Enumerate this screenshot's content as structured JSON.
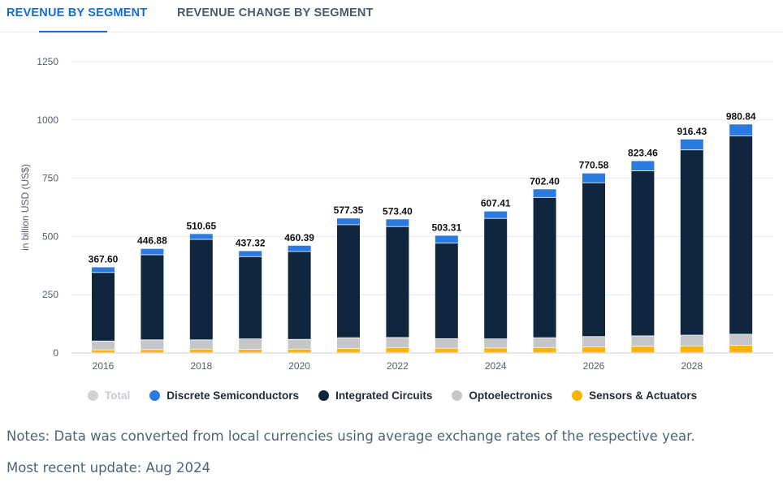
{
  "tabs": [
    {
      "label": "REVENUE BY SEGMENT",
      "active": true
    },
    {
      "label": "REVENUE CHANGE BY SEGMENT",
      "active": false
    }
  ],
  "colors": {
    "accent": "#0f6fd1",
    "discrete": "#2b7ae0",
    "integrated": "#10263f",
    "opto": "#c4c6c9",
    "sensors": "#fcb400",
    "total_muted": "#d0d3d6"
  },
  "legend": [
    {
      "label": "Total",
      "color": "#d0d3d6",
      "muted": true
    },
    {
      "label": "Discrete Semiconductors",
      "color": "#2b7ae0",
      "muted": false
    },
    {
      "label": "Integrated Circuits",
      "color": "#10263f",
      "muted": false
    },
    {
      "label": "Optoelectronics",
      "color": "#c4c6c9",
      "muted": false
    },
    {
      "label": "Sensors & Actuators",
      "color": "#fcb400",
      "muted": false
    }
  ],
  "notes": "Notes: Data was converted from local currencies using average exchange rates of the respective year.",
  "update": "Most recent update: Aug 2024",
  "chart_data": {
    "type": "bar",
    "stacked": true,
    "ylabel": "in billion USD (US$)",
    "ylim": [
      0,
      1250
    ],
    "yticks": [
      0,
      250,
      500,
      750,
      1000,
      1250
    ],
    "grid": true,
    "legend_position": "bottom",
    "categories": [
      "2016",
      "2017",
      "2018",
      "2019",
      "2020",
      "2021",
      "2022",
      "2023",
      "2024",
      "2025",
      "2026",
      "2027",
      "2028",
      "2029"
    ],
    "x_tick_labels": [
      "2016",
      "",
      "2018",
      "",
      "2020",
      "",
      "2022",
      "",
      "2024",
      "",
      "2026",
      "",
      "2028",
      ""
    ],
    "totals": [
      "367.60",
      "446.88",
      "510.65",
      "437.32",
      "460.39",
      "577.35",
      "573.40",
      "503.31",
      "607.41",
      "702.40",
      "770.58",
      "823.46",
      "916.43",
      "980.84"
    ],
    "series": [
      {
        "name": "Sensors & Actuators",
        "color": "#fcb400",
        "values": [
          12,
          13,
          15,
          14,
          15,
          18,
          22,
          19,
          20,
          22,
          25,
          27,
          29,
          32
        ]
      },
      {
        "name": "Optoelectronics",
        "color": "#c4c6c9",
        "values": [
          38,
          42,
          40,
          45,
          42,
          46,
          43,
          41,
          39,
          42,
          44,
          45,
          46,
          47
        ]
      },
      {
        "name": "Integrated Circuits",
        "color": "#10263f",
        "values": [
          294,
          365,
          431,
          353,
          377,
          485,
          476,
          410,
          517,
          602,
          660,
          708,
          795,
          851
        ]
      },
      {
        "name": "Discrete Semiconductors",
        "color": "#2b7ae0",
        "values": [
          23.6,
          26.88,
          24.65,
          25.32,
          26.39,
          28.35,
          32.4,
          33.31,
          31.41,
          36.4,
          41.58,
          43.46,
          46.43,
          50.84
        ]
      }
    ]
  }
}
